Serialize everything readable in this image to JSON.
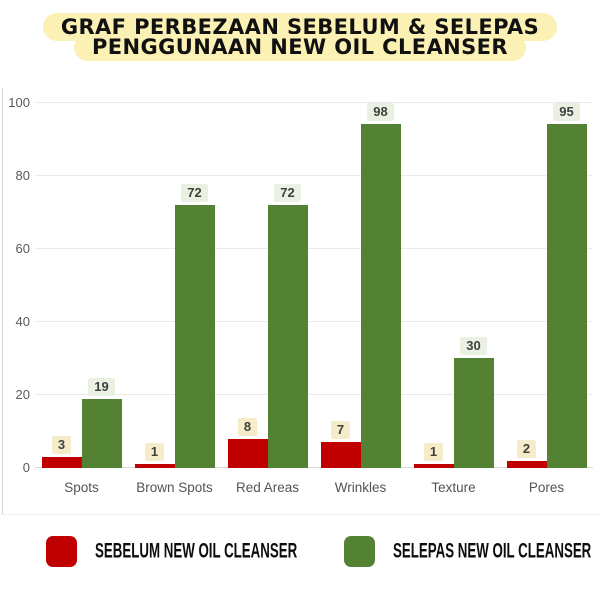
{
  "title": {
    "line1": "GRAF PERBEZAAN SEBELUM & SELEPAS",
    "line2": "PENGGUNAAN NEW OIL CLEANSER"
  },
  "colors": {
    "sebelum_bar": "#C00000",
    "selepas_bar": "#548235",
    "title_bg": "#FBF1B5",
    "chip_bg_sebelum": "#F7ECC9",
    "chip_bg_selepas": "#EAF1E2",
    "axis_text": "#595959",
    "gridline": "#E9E9E9"
  },
  "legend": [
    {
      "label": "SEBELUM NEW OIL CLEANSER",
      "series": "sebelum"
    },
    {
      "label": "SELEPAS NEW OIL CLEANSER",
      "series": "selepas"
    }
  ],
  "chart_data": {
    "type": "bar",
    "categories": [
      "Spots",
      "Brown Spots",
      "Red Areas",
      "Wrinkles",
      "Texture",
      "Pores"
    ],
    "series": [
      {
        "name": "SEBELUM NEW OIL CLEANSER",
        "key": "sebelum",
        "values": [
          3,
          1,
          8,
          7,
          1,
          2
        ]
      },
      {
        "name": "SELEPAS NEW OIL CLEANSER",
        "key": "selepas",
        "values": [
          19,
          72,
          72,
          98,
          30,
          95
        ]
      }
    ],
    "title": "GRAF PERBEZAAN SEBELUM & SELEPAS PENGGUNAAN NEW OIL CLEANSER",
    "xlabel": "",
    "ylabel": "",
    "ylim": [
      0,
      100
    ],
    "yticks": [
      0,
      20,
      40,
      60,
      80,
      100
    ],
    "grid": true,
    "data_labels": true,
    "legend_position": "bottom"
  }
}
